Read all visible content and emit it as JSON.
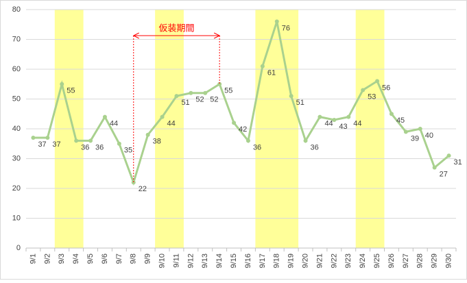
{
  "chart_data": {
    "type": "line",
    "categories": [
      "9/1",
      "9/2",
      "9/3",
      "9/4",
      "9/5",
      "9/6",
      "9/7",
      "9/8",
      "9/9",
      "9/10",
      "9/11",
      "9/12",
      "9/13",
      "9/14",
      "9/15",
      "9/16",
      "9/17",
      "9/18",
      "9/19",
      "9/20",
      "9/21",
      "9/22",
      "9/23",
      "9/24",
      "9/25",
      "9/26",
      "9/27",
      "9/28",
      "9/29",
      "9/30"
    ],
    "values": [
      37,
      37,
      55,
      36,
      36,
      44,
      35,
      22,
      38,
      44,
      51,
      52,
      52,
      55,
      42,
      36,
      61,
      76,
      51,
      36,
      44,
      43,
      44,
      53,
      56,
      45,
      39,
      40,
      27,
      31
    ],
    "color": "#a9d18e",
    "ylim": [
      0,
      80
    ],
    "yticks": [
      0,
      10,
      20,
      30,
      40,
      50,
      60,
      70,
      80
    ],
    "grid": true,
    "annotation": {
      "text": "仮装期間",
      "color": "#ff0000"
    }
  }
}
